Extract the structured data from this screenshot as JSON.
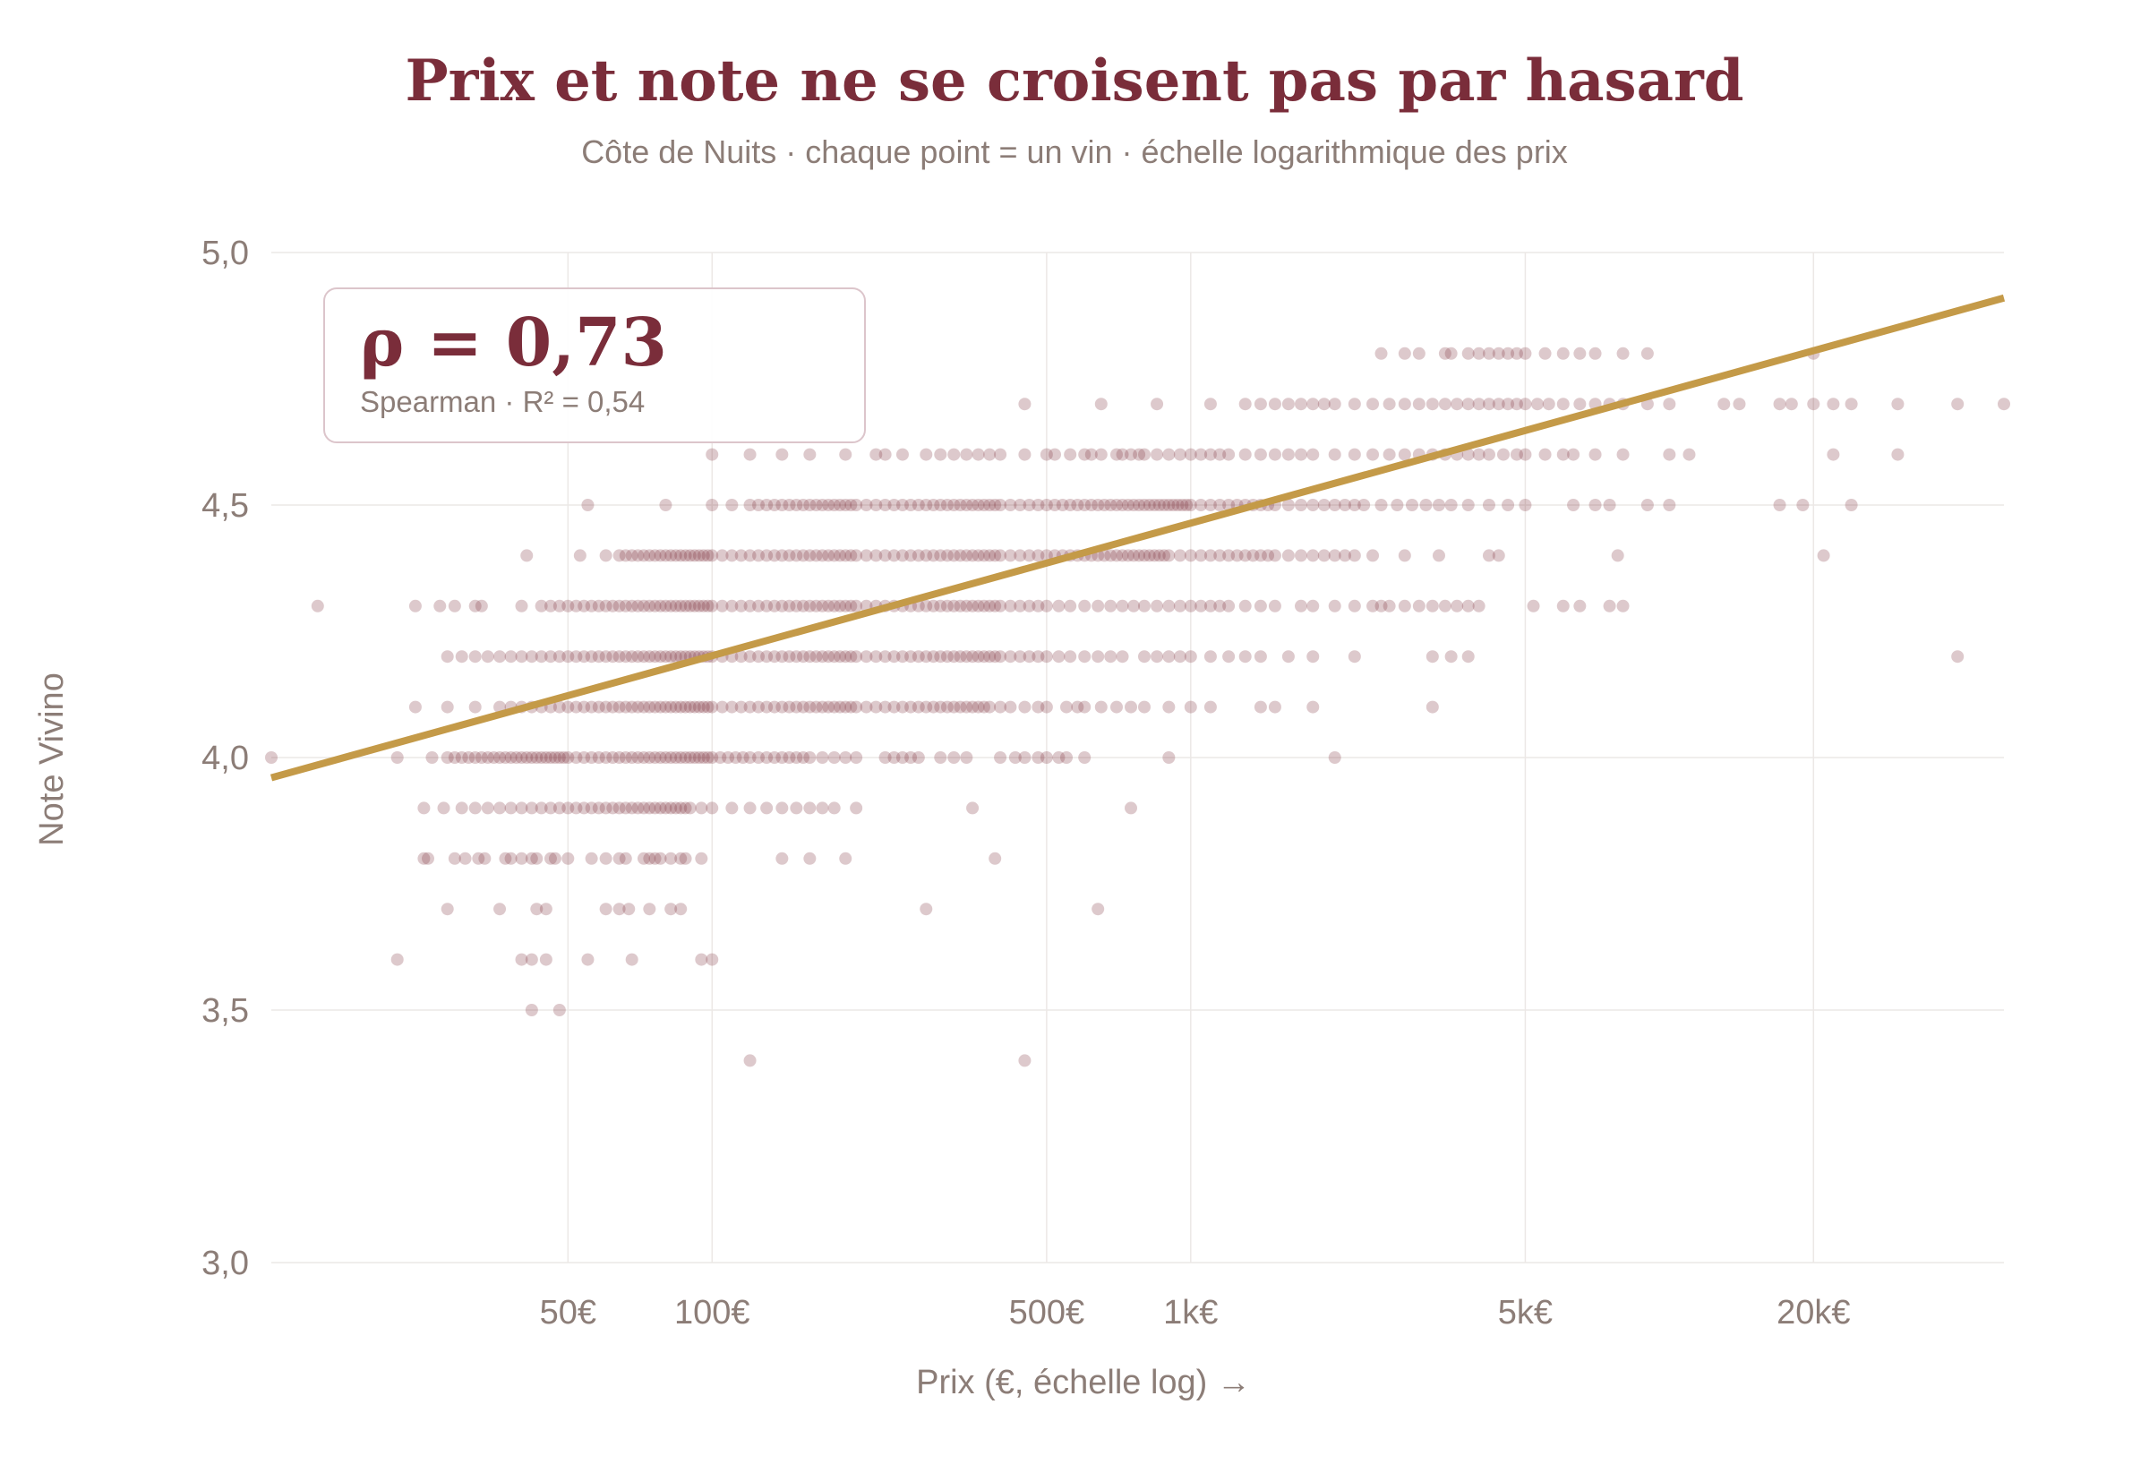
{
  "chart_data": {
    "type": "scatter",
    "title": "Prix et note ne se croisent pas par hasard",
    "subtitle": "Côte de Nuits · chaque point = un vin · échelle logarithmique des prix",
    "xlabel": "Prix (€, échelle log) →",
    "ylabel": "Note Vivino",
    "x_scale": "log",
    "xlim": [
      12,
      50000
    ],
    "ylim": [
      3.0,
      5.0
    ],
    "grid": true,
    "x_ticks": [
      {
        "value": 50,
        "label": "50€"
      },
      {
        "value": 100,
        "label": "100€"
      },
      {
        "value": 500,
        "label": "500€"
      },
      {
        "value": 1000,
        "label": "1k€"
      },
      {
        "value": 5000,
        "label": "5k€"
      },
      {
        "value": 20000,
        "label": "20k€"
      }
    ],
    "y_ticks": [
      {
        "value": 3.0,
        "label": "3,0"
      },
      {
        "value": 3.5,
        "label": "3,5"
      },
      {
        "value": 4.0,
        "label": "4,0"
      },
      {
        "value": 4.5,
        "label": "4,5"
      },
      {
        "value": 5.0,
        "label": "5,0"
      }
    ],
    "trend_line": {
      "x": [
        12,
        50000
      ],
      "y": [
        3.96,
        4.91
      ]
    },
    "annotation": {
      "rho": "ρ = 0,73",
      "detail": "Spearman · R² = 0,54"
    },
    "colors": {
      "points": "#7a2d3a",
      "trend": "#c49a48",
      "title": "#7a2d3a",
      "text": "#8c7d77"
    },
    "points_by_rating": [
      {
        "y": 3.4,
        "x": [
          120,
          450
        ]
      },
      {
        "y": 3.5,
        "x": [
          42,
          48
        ]
      },
      {
        "y": 3.6,
        "x": [
          22,
          40,
          42,
          45,
          55,
          68,
          95,
          100
        ]
      },
      {
        "y": 3.7,
        "x": [
          28,
          36,
          43,
          45,
          60,
          64,
          67,
          74,
          82,
          86,
          280,
          640
        ]
      },
      {
        "y": 3.8,
        "x": [
          25,
          25.5,
          29,
          30.5,
          32.5,
          33.5,
          37,
          38,
          40,
          42,
          43,
          46,
          47,
          50,
          56,
          60,
          64,
          66,
          72,
          74,
          76,
          78,
          82,
          86,
          88,
          95,
          140,
          160,
          190,
          390
        ]
      },
      {
        "y": 3.9,
        "x": [
          25,
          27.5,
          30,
          32,
          34,
          36,
          38,
          40,
          42,
          44,
          46,
          48,
          50,
          52,
          54,
          56,
          58,
          60,
          62,
          64,
          66,
          68,
          70,
          72,
          74,
          76,
          78,
          80,
          82,
          84,
          86,
          88,
          90,
          95,
          100,
          110,
          120,
          130,
          140,
          150,
          160,
          170,
          180,
          200,
          350,
          750
        ]
      },
      {
        "y": 4.0,
        "x": [
          12,
          22,
          26,
          28,
          29,
          30,
          31,
          32,
          33,
          34,
          35,
          36,
          37,
          38,
          39,
          40,
          41,
          42,
          43,
          44,
          45,
          46,
          47,
          48,
          49,
          50,
          52,
          54,
          56,
          58,
          60,
          62,
          64,
          66,
          68,
          70,
          72,
          74,
          76,
          78,
          80,
          82,
          84,
          86,
          88,
          90,
          92,
          94,
          96,
          98,
          100,
          104,
          108,
          112,
          116,
          120,
          125,
          130,
          135,
          140,
          145,
          150,
          155,
          160,
          170,
          180,
          190,
          200,
          230,
          240,
          250,
          260,
          270,
          300,
          320,
          340,
          400,
          430,
          450,
          480,
          500,
          530,
          550,
          600,
          900,
          2000
        ]
      },
      {
        "y": 4.1,
        "x": [
          24,
          28,
          32,
          36,
          38,
          40,
          42,
          44,
          46,
          48,
          50,
          52,
          54,
          56,
          58,
          60,
          62,
          64,
          66,
          68,
          70,
          72,
          74,
          76,
          78,
          80,
          82,
          84,
          86,
          88,
          90,
          92,
          94,
          96,
          98,
          100,
          105,
          110,
          115,
          120,
          125,
          130,
          135,
          140,
          145,
          150,
          155,
          160,
          165,
          170,
          175,
          180,
          185,
          190,
          195,
          200,
          210,
          220,
          230,
          240,
          250,
          260,
          270,
          280,
          290,
          300,
          310,
          320,
          330,
          340,
          350,
          360,
          370,
          380,
          400,
          420,
          450,
          480,
          500,
          550,
          580,
          600,
          650,
          700,
          750,
          800,
          900,
          1000,
          1100,
          1400,
          1500,
          1800,
          3200
        ]
      },
      {
        "y": 4.2,
        "x": [
          28,
          30,
          32,
          34,
          36,
          38,
          40,
          42,
          44,
          46,
          48,
          50,
          52,
          54,
          56,
          58,
          60,
          62,
          64,
          66,
          68,
          70,
          72,
          74,
          76,
          78,
          80,
          82,
          84,
          86,
          88,
          90,
          92,
          94,
          96,
          98,
          100,
          105,
          110,
          115,
          120,
          125,
          130,
          135,
          140,
          145,
          150,
          155,
          160,
          165,
          170,
          175,
          180,
          185,
          190,
          195,
          200,
          210,
          220,
          230,
          240,
          250,
          260,
          270,
          280,
          290,
          300,
          310,
          320,
          330,
          340,
          350,
          360,
          370,
          380,
          390,
          400,
          420,
          440,
          460,
          480,
          500,
          530,
          560,
          600,
          640,
          680,
          720,
          800,
          850,
          900,
          950,
          1000,
          1100,
          1200,
          1300,
          1400,
          1600,
          1800,
          2200,
          3200,
          3500,
          3800,
          40000
        ]
      },
      {
        "y": 4.3,
        "x": [
          15,
          24,
          27,
          29,
          32,
          33,
          40,
          44,
          46,
          48,
          50,
          52,
          54,
          56,
          58,
          60,
          62,
          64,
          66,
          68,
          70,
          72,
          74,
          76,
          78,
          80,
          82,
          84,
          86,
          88,
          90,
          92,
          94,
          96,
          98,
          100,
          105,
          110,
          115,
          120,
          125,
          130,
          135,
          140,
          145,
          150,
          155,
          160,
          165,
          170,
          175,
          180,
          185,
          190,
          195,
          200,
          210,
          220,
          230,
          240,
          250,
          260,
          270,
          280,
          290,
          300,
          310,
          320,
          330,
          340,
          350,
          360,
          370,
          380,
          390,
          400,
          420,
          440,
          460,
          480,
          500,
          530,
          560,
          600,
          640,
          680,
          720,
          760,
          800,
          850,
          900,
          950,
          1000,
          1050,
          1100,
          1150,
          1200,
          1300,
          1400,
          1500,
          1700,
          1800,
          2000,
          2200,
          2400,
          2500,
          2600,
          2800,
          3000,
          3200,
          3400,
          3600,
          3800,
          4000,
          5200,
          6000,
          6500,
          7500,
          8000
        ]
      },
      {
        "y": 4.4,
        "x": [
          41,
          53,
          60,
          64,
          66,
          68,
          70,
          72,
          74,
          76,
          78,
          80,
          82,
          84,
          86,
          88,
          90,
          92,
          94,
          96,
          98,
          100,
          105,
          110,
          115,
          120,
          125,
          130,
          135,
          140,
          145,
          150,
          155,
          160,
          165,
          170,
          175,
          180,
          185,
          190,
          195,
          200,
          210,
          220,
          230,
          240,
          250,
          260,
          270,
          280,
          290,
          300,
          310,
          320,
          330,
          340,
          350,
          360,
          370,
          380,
          390,
          400,
          420,
          440,
          460,
          480,
          500,
          520,
          540,
          560,
          580,
          600,
          620,
          640,
          660,
          680,
          700,
          720,
          740,
          760,
          780,
          800,
          820,
          840,
          860,
          880,
          900,
          950,
          1000,
          1050,
          1100,
          1150,
          1200,
          1250,
          1300,
          1350,
          1400,
          1450,
          1500,
          1600,
          1700,
          1800,
          1900,
          2000,
          2100,
          2200,
          2400,
          2800,
          3300,
          4200,
          4400,
          7800,
          21000
        ]
      },
      {
        "y": 4.5,
        "x": [
          55,
          80,
          100,
          110,
          120,
          125,
          130,
          135,
          140,
          145,
          150,
          155,
          160,
          165,
          170,
          175,
          180,
          185,
          190,
          195,
          200,
          210,
          220,
          230,
          240,
          250,
          260,
          270,
          280,
          290,
          300,
          310,
          320,
          330,
          340,
          350,
          360,
          370,
          380,
          390,
          400,
          420,
          440,
          460,
          480,
          500,
          520,
          540,
          560,
          580,
          600,
          620,
          640,
          660,
          680,
          700,
          720,
          740,
          760,
          780,
          800,
          820,
          840,
          860,
          880,
          900,
          920,
          940,
          960,
          980,
          1000,
          1050,
          1100,
          1150,
          1200,
          1250,
          1300,
          1350,
          1400,
          1450,
          1500,
          1600,
          1700,
          1800,
          1900,
          2000,
          2100,
          2200,
          2300,
          2500,
          2700,
          2900,
          3100,
          3300,
          3500,
          3800,
          4200,
          4600,
          5000,
          6300,
          7000,
          7500,
          9000,
          10000,
          17000,
          19000,
          24000
        ]
      },
      {
        "y": 4.6,
        "x": [
          100,
          120,
          140,
          160,
          190,
          220,
          230,
          250,
          280,
          300,
          320,
          340,
          360,
          380,
          400,
          450,
          500,
          520,
          560,
          600,
          620,
          650,
          700,
          720,
          750,
          780,
          800,
          850,
          900,
          950,
          1000,
          1050,
          1100,
          1150,
          1200,
          1300,
          1400,
          1500,
          1600,
          1700,
          1800,
          2000,
          2200,
          2400,
          2600,
          2800,
          3000,
          3200,
          3400,
          3600,
          3800,
          4000,
          4200,
          4500,
          4800,
          5000,
          5500,
          6000,
          6300,
          7000,
          8000,
          10000,
          11000,
          22000,
          30000
        ]
      },
      {
        "y": 4.7,
        "x": [
          450,
          650,
          850,
          1100,
          1300,
          1400,
          1500,
          1600,
          1700,
          1800,
          1900,
          2000,
          2200,
          2400,
          2600,
          2800,
          3000,
          3200,
          3400,
          3600,
          3800,
          4000,
          4200,
          4400,
          4600,
          4800,
          5000,
          5300,
          5600,
          6000,
          6500,
          7000,
          7500,
          8000,
          9000,
          10000,
          13000,
          14000,
          17000,
          18000,
          20000,
          22000,
          24000,
          30000,
          40000,
          50000
        ]
      },
      {
        "y": 4.8,
        "x": [
          2500,
          2800,
          3000,
          3400,
          3500,
          3800,
          4000,
          4200,
          4400,
          4600,
          4800,
          5000,
          5500,
          6000,
          6500,
          7000,
          8000,
          9000,
          20000
        ]
      }
    ]
  }
}
